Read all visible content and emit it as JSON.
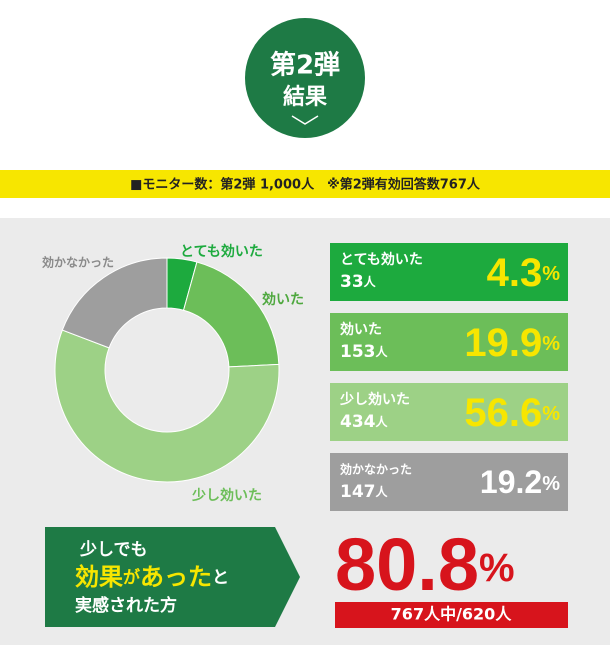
{
  "badge": {
    "line1": "第2弾",
    "line2": "結果"
  },
  "banner": "■モニター数：第2弾 1,000人　※第2弾有効回答数767人",
  "chart_data": {
    "type": "donut",
    "categories": [
      "とても効いた",
      "効いた",
      "少し効いた",
      "効かなかった"
    ],
    "values": [
      4.3,
      19.9,
      56.6,
      19.2
    ],
    "unit": "%",
    "counts": [
      33,
      153,
      434,
      147
    ],
    "count_unit": "人",
    "colors": [
      "#1daa3e",
      "#6cbe59",
      "#9dd186",
      "#9e9e9e"
    ]
  },
  "callout": {
    "line1": "少しでも",
    "line2": [
      "効果",
      "が",
      "あった",
      "と"
    ],
    "line3": "実感された方"
  },
  "summary": {
    "value": 80.8,
    "unit": "%",
    "note": "767人中/620人"
  }
}
